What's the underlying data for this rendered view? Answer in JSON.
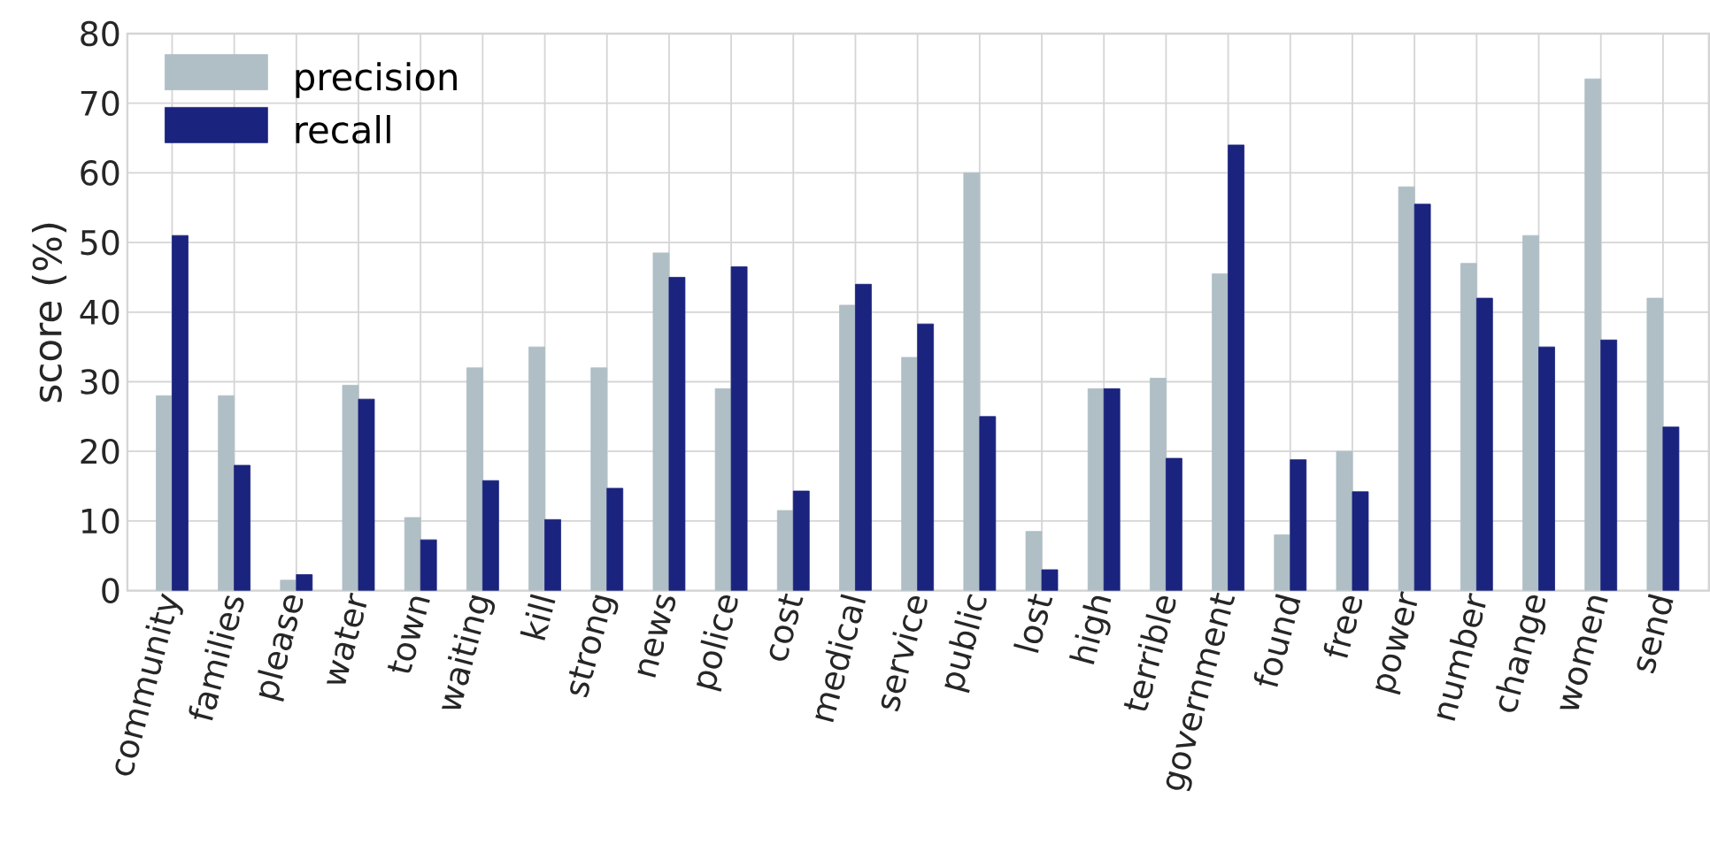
{
  "chart_data": {
    "type": "bar",
    "ylabel": "score (%)",
    "categories": [
      "community",
      "families",
      "please",
      "water",
      "town",
      "waiting",
      "kill",
      "strong",
      "news",
      "police",
      "cost",
      "medical",
      "service",
      "public",
      "lost",
      "high",
      "terrible",
      "government",
      "found",
      "free",
      "power",
      "number",
      "change",
      "women",
      "send"
    ],
    "series": [
      {
        "name": "precision",
        "color": "#b0bec5",
        "values": [
          28,
          28,
          1.5,
          29.5,
          10.5,
          32,
          35,
          32,
          48.5,
          29,
          11.5,
          41,
          33.5,
          60,
          8.5,
          29,
          30.5,
          45.5,
          8,
          20,
          58,
          47,
          51,
          73.5,
          42
        ]
      },
      {
        "name": "recall",
        "color": "#1a237e",
        "values": [
          51,
          18,
          2.3,
          27.5,
          7.3,
          15.8,
          10.2,
          14.7,
          45,
          46.5,
          14.3,
          44,
          38.3,
          25,
          3,
          29,
          19,
          64,
          18.8,
          14.2,
          55.5,
          42,
          35,
          36,
          23.5
        ]
      }
    ],
    "ylim": [
      0,
      80
    ],
    "yticks": [
      0,
      10,
      20,
      30,
      40,
      50,
      60,
      70,
      80
    ],
    "grid": true,
    "legend": "top left"
  }
}
